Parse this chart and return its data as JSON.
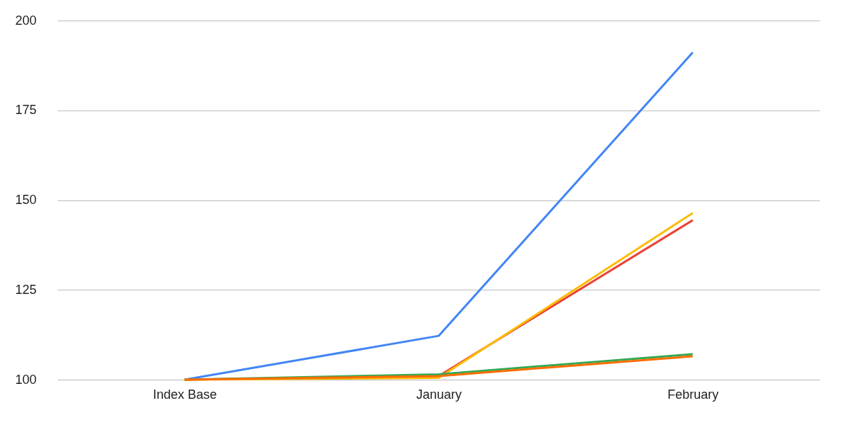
{
  "chart_data": {
    "type": "line",
    "categories": [
      "Index Base",
      "January",
      "February"
    ],
    "series": [
      {
        "color": "#4285f4",
        "values": [
          100,
          112.2,
          191.1
        ]
      },
      {
        "color": "#ea4335",
        "values": [
          100,
          101,
          144.4
        ]
      },
      {
        "color": "#fbbc04",
        "values": [
          100,
          100.5,
          146.4
        ]
      },
      {
        "color": "#34a853",
        "values": [
          100,
          101.5,
          107.1
        ]
      },
      {
        "color": "#ff6d01",
        "values": [
          100,
          101,
          106.5
        ]
      }
    ],
    "ylim": [
      100,
      200
    ],
    "yticks": [
      100,
      125,
      150,
      175,
      200
    ],
    "grid": "y",
    "legend": false,
    "marker": "none",
    "line_style": "solid"
  }
}
